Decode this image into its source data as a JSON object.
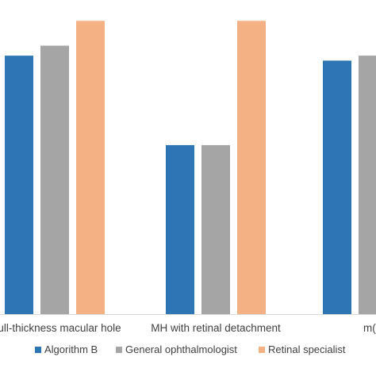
{
  "chart_data": {
    "type": "bar",
    "categories": [
      "Full-thickness macular hole",
      "MH with retinal detachment",
      "mCNV"
    ],
    "visible_category_labels": [
      "ull-thickness macular hole",
      "MH with retinal detachment",
      "m("
    ],
    "series": [
      {
        "name": "Algorithm B",
        "color": "#2e75b6",
        "values": [
          0.92,
          0.74,
          0.91
        ]
      },
      {
        "name": "General ophthalmologist",
        "color": "#a5a5a5",
        "values": [
          0.94,
          0.74,
          0.92
        ]
      },
      {
        "name": "Retinal specialist",
        "color": "#f4b183",
        "values": [
          0.99,
          0.99,
          null
        ]
      }
    ],
    "title": "",
    "xlabel": "",
    "ylabel": "",
    "ylim": [
      0.4,
      1.0
    ],
    "grid": false,
    "legend_position": "bottom"
  }
}
